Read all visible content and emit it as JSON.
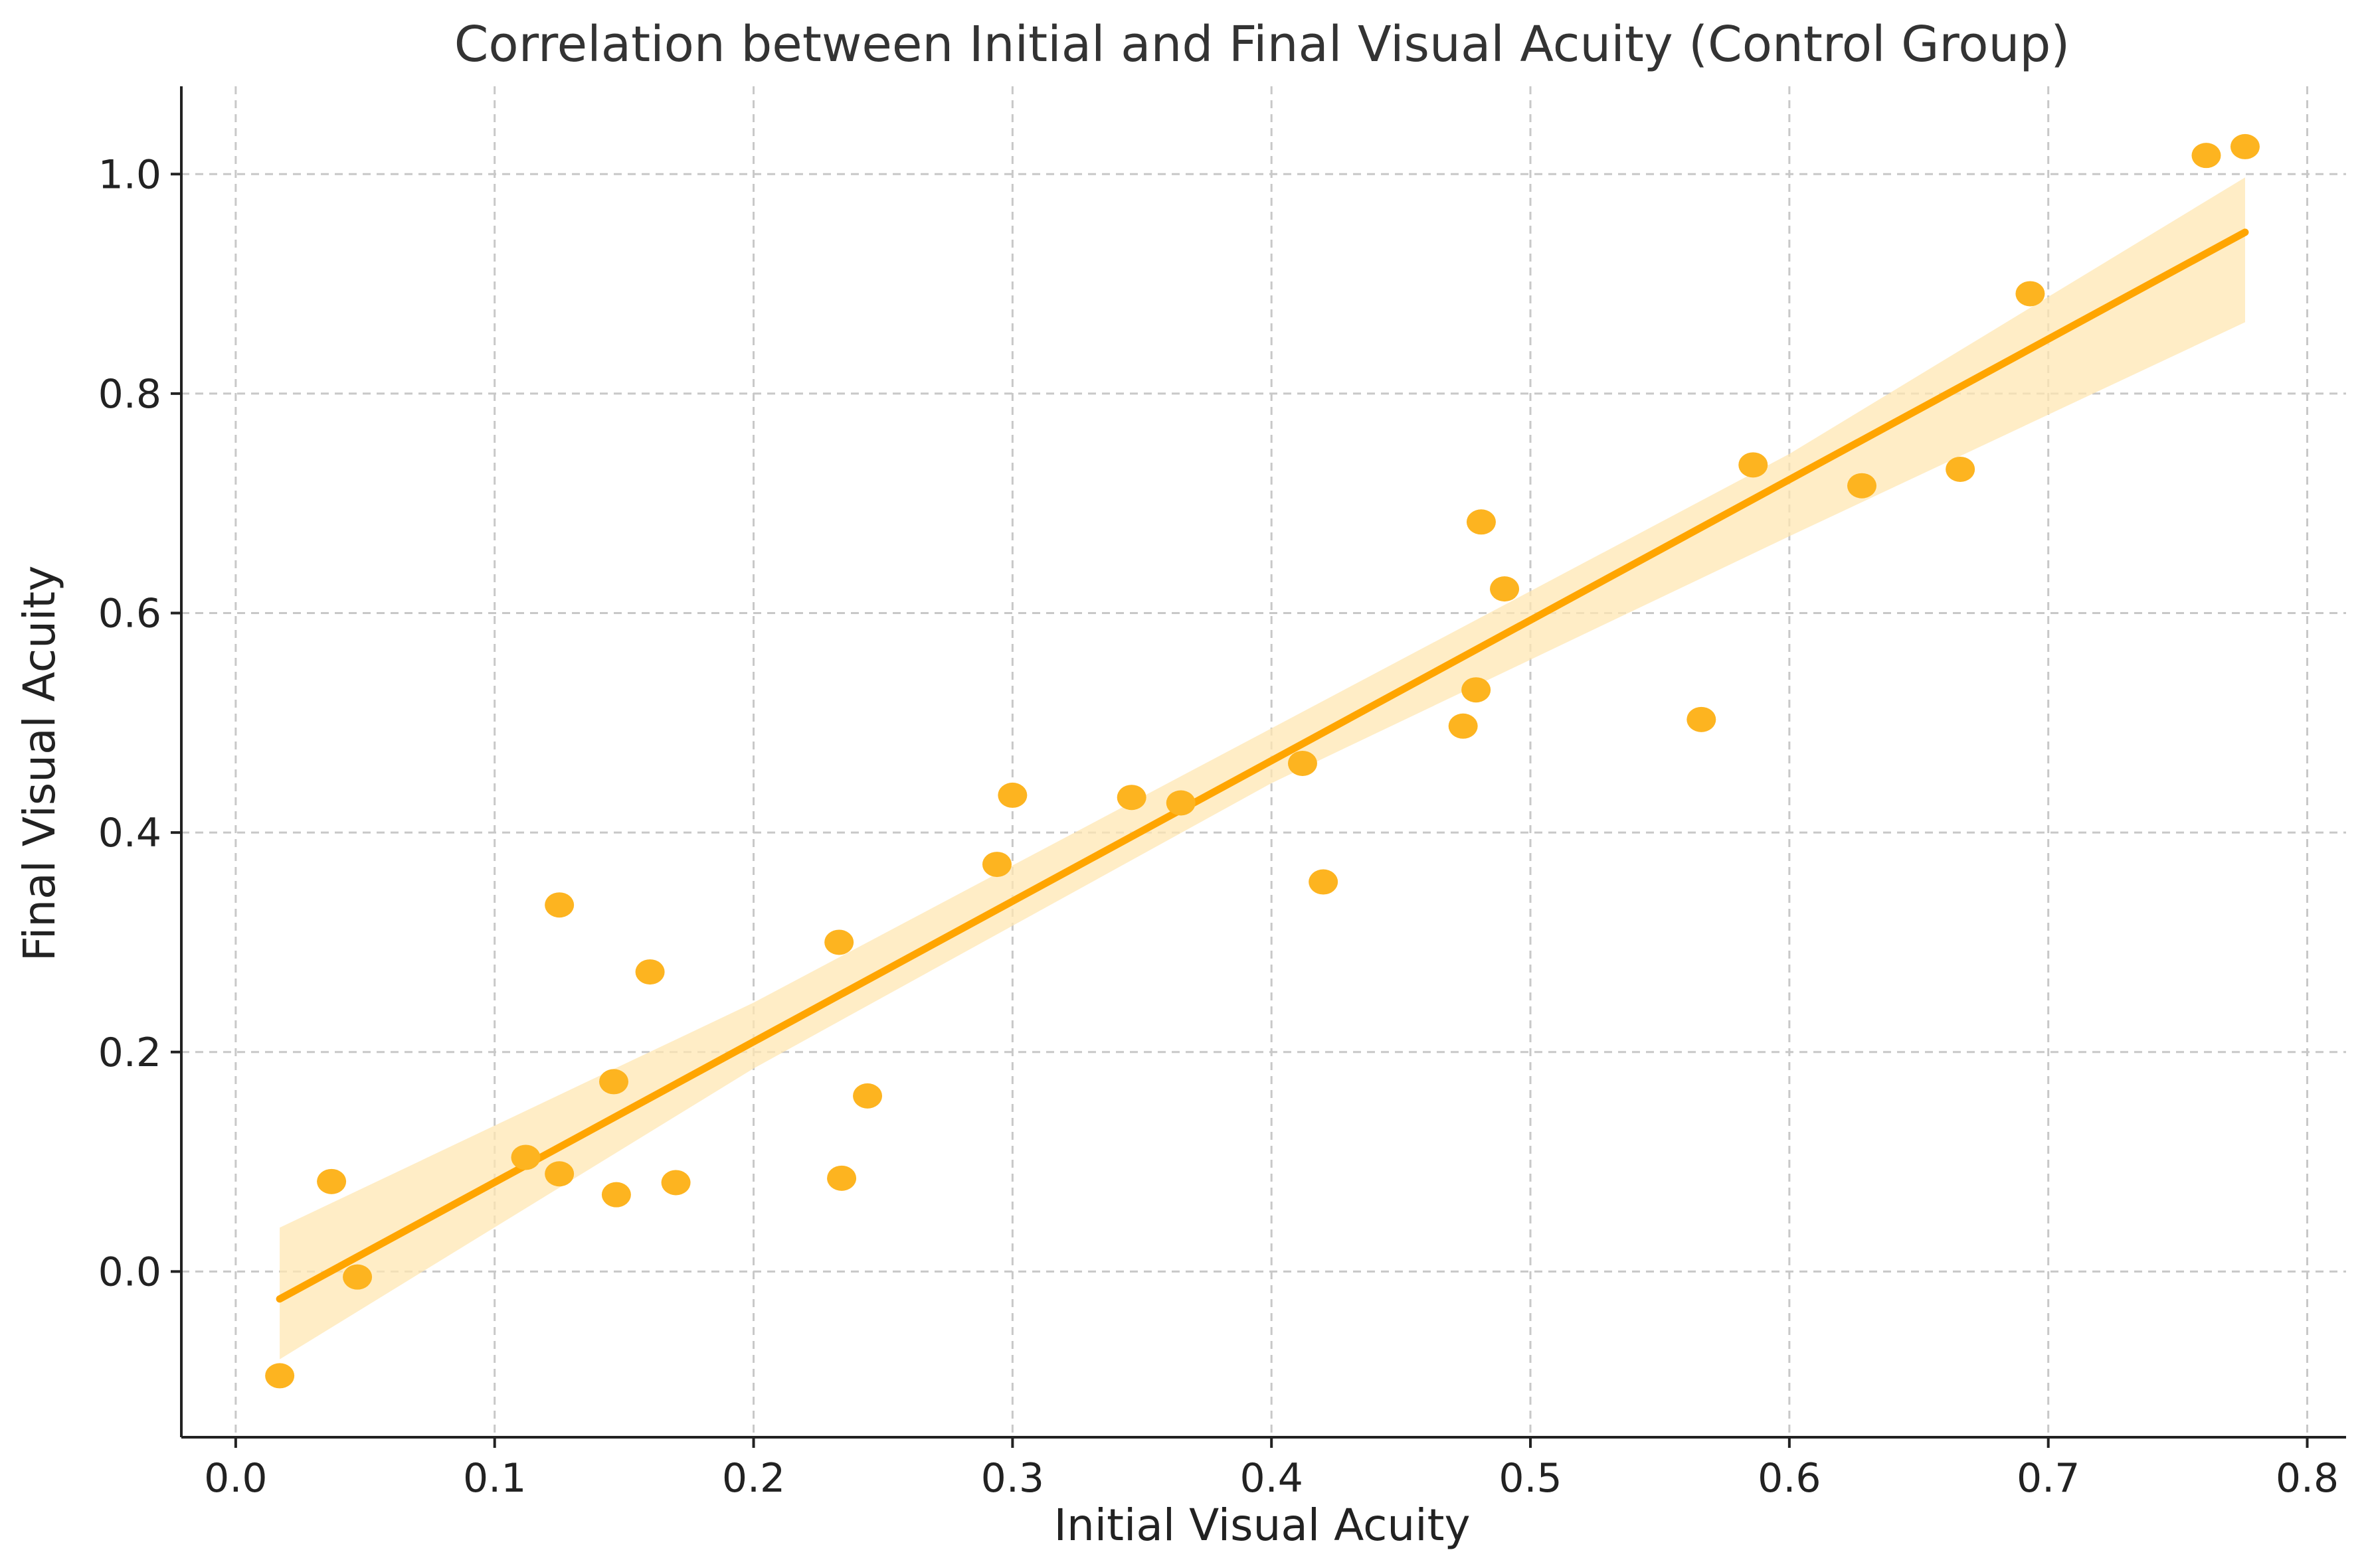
{
  "chart_data": {
    "type": "scatter",
    "title": "Correlation between Initial and Final Visual Acuity (Control Group)",
    "xlabel": "Initial Visual Acuity",
    "ylabel": "Final Visual Acuity",
    "xlim": [
      -0.021,
      0.815
    ],
    "ylim": [
      -0.151,
      1.08
    ],
    "xticks": [
      0.0,
      0.1,
      0.2,
      0.3,
      0.4,
      0.5,
      0.6,
      0.7,
      0.8
    ],
    "xtick_labels": [
      "0.0",
      "0.1",
      "0.2",
      "0.3",
      "0.4",
      "0.5",
      "0.6",
      "0.7",
      "0.8"
    ],
    "yticks": [
      0.0,
      0.2,
      0.4,
      0.6,
      0.8,
      1.0
    ],
    "ytick_labels": [
      "0.0",
      "0.2",
      "0.4",
      "0.6",
      "0.8",
      "1.0"
    ],
    "grid": true,
    "color": "#ffa500",
    "band_color": "#ffe7b3",
    "x": [
      0.017,
      0.037,
      0.047,
      0.112,
      0.125,
      0.125,
      0.146,
      0.147,
      0.16,
      0.17,
      0.233,
      0.234,
      0.244,
      0.294,
      0.3,
      0.346,
      0.365,
      0.412,
      0.42,
      0.474,
      0.479,
      0.481,
      0.49,
      0.566,
      0.586,
      0.628,
      0.666,
      0.693,
      0.761,
      0.776
    ],
    "y": [
      -0.095,
      0.082,
      -0.005,
      0.104,
      0.089,
      0.334,
      0.173,
      0.07,
      0.273,
      0.081,
      0.3,
      0.085,
      0.16,
      0.371,
      0.434,
      0.432,
      0.427,
      0.463,
      0.355,
      0.497,
      0.53,
      0.683,
      0.622,
      0.503,
      0.735,
      0.716,
      0.731,
      0.891,
      1.017,
      1.025
    ],
    "regression": {
      "x": [
        0.017,
        0.776
      ],
      "y": [
        -0.025,
        0.947
      ]
    },
    "confidence_band": {
      "x": [
        0.017,
        0.2,
        0.4,
        0.6,
        0.776
      ],
      "upper": [
        0.04,
        0.245,
        0.495,
        0.745,
        0.997
      ],
      "lower": [
        -0.08,
        0.185,
        0.445,
        0.67,
        0.865
      ]
    }
  }
}
